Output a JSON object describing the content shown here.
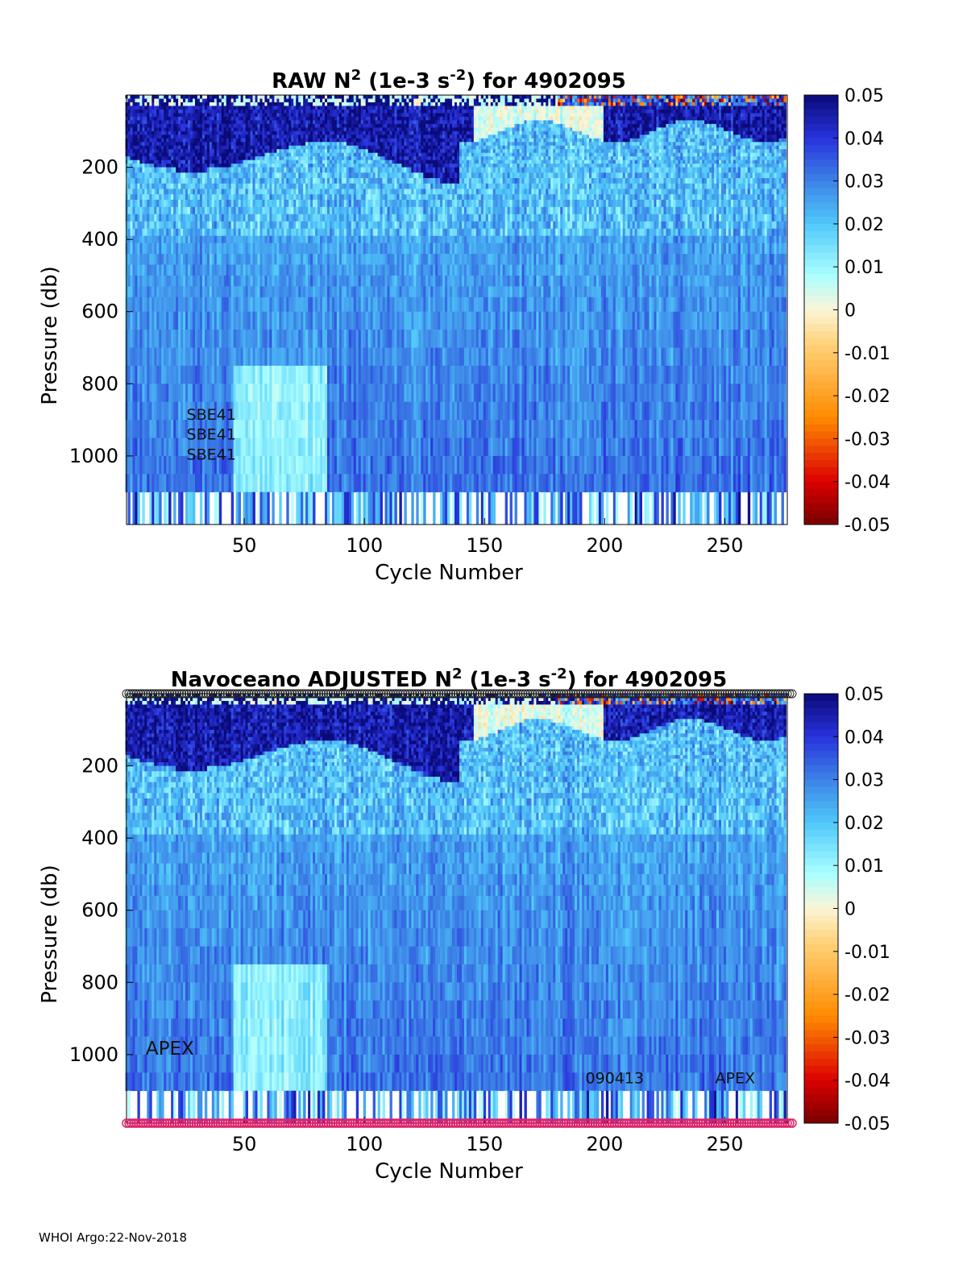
{
  "chart_data": [
    {
      "type": "heatmap",
      "title": {
        "prefix": "RAW N",
        "sup1": "2",
        "mid": " (1e-3 s",
        "sup2": "-2",
        "suffix": ") for 4902095"
      },
      "xlabel": "Cycle Number",
      "ylabel": "Pressure (db)",
      "xlim": [
        1,
        276
      ],
      "ylim": [
        0,
        1190
      ],
      "y_reversed": true,
      "xticks": [
        50,
        100,
        150,
        200,
        250
      ],
      "yticks": [
        200,
        400,
        600,
        800,
        1000
      ],
      "colorbar": {
        "min": -0.05,
        "max": 0.05,
        "ticks": [
          "0.05",
          "0.04",
          "0.03",
          "0.02",
          "0.01",
          "0",
          "-0.01",
          "-0.02",
          "-0.03",
          "-0.04",
          "-0.05"
        ]
      },
      "annotations": [
        {
          "text": "SBE41",
          "x": 26,
          "y": 900
        },
        {
          "text": "SBE41",
          "x": 26,
          "y": 955
        },
        {
          "text": "SBE41",
          "x": 26,
          "y": 1010
        }
      ],
      "seed": 11,
      "marker_rows": false
    },
    {
      "type": "heatmap",
      "title": {
        "prefix": "Navoceano  ADJUSTED N",
        "sup1": "2",
        "mid": " (1e-3 s",
        "sup2": "-2",
        "suffix": ") for 4902095"
      },
      "xlabel": "Cycle Number",
      "ylabel": "Pressure (db)",
      "xlim": [
        1,
        276
      ],
      "ylim": [
        0,
        1190
      ],
      "y_reversed": true,
      "xticks": [
        50,
        100,
        150,
        200,
        250
      ],
      "yticks": [
        200,
        400,
        600,
        800,
        1000
      ],
      "colorbar": {
        "min": -0.05,
        "max": 0.05,
        "ticks": [
          "0.05",
          "0.04",
          "0.03",
          "0.02",
          "0.01",
          "0",
          "-0.01",
          "-0.02",
          "-0.03",
          "-0.04",
          "-0.05"
        ]
      },
      "annotations": [
        {
          "text": "APEX",
          "x": 9,
          "y": 1000
        },
        {
          "text": "090413",
          "x": 192,
          "y": 1080
        },
        {
          "text": "APEX",
          "x": 246,
          "y": 1080
        }
      ],
      "seed": 23,
      "marker_rows": true
    }
  ],
  "footer": "WHOI Argo:22-Nov-2018"
}
